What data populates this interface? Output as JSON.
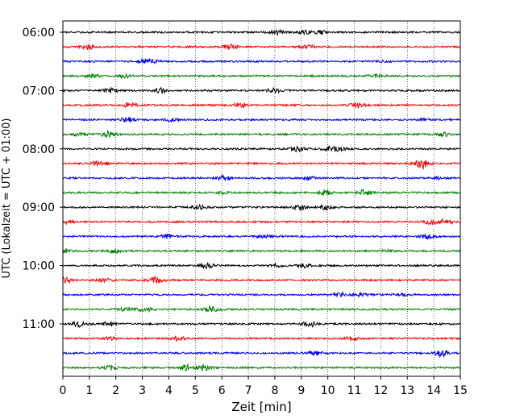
{
  "chart_data": {
    "type": "line",
    "title": "",
    "xlabel": "Zeit  [min]",
    "ylabel": "UTC (Lokalzeit = UTC + 01:00)",
    "xlim": [
      0,
      15
    ],
    "x_ticks": [
      "0",
      "1",
      "2",
      "3",
      "4",
      "5",
      "6",
      "7",
      "8",
      "9",
      "10",
      "11",
      "12",
      "13",
      "14",
      "15"
    ],
    "y_tick_labels": [
      "06:00",
      "07:00",
      "08:00",
      "09:00",
      "10:00",
      "11:00"
    ],
    "trace_start_times": [
      "06:00",
      "06:15",
      "06:30",
      "06:45",
      "07:00",
      "07:15",
      "07:30",
      "07:45",
      "08:00",
      "08:15",
      "08:30",
      "08:45",
      "09:00",
      "09:15",
      "09:30",
      "09:45",
      "10:00",
      "10:15",
      "10:30",
      "10:45",
      "11:00",
      "11:15",
      "11:30",
      "11:45"
    ],
    "trace_minutes": 15,
    "trace_colors": [
      "#000000",
      "#ff0000",
      "#0000ff",
      "#008000"
    ],
    "grid_x": true,
    "legend": "none"
  }
}
